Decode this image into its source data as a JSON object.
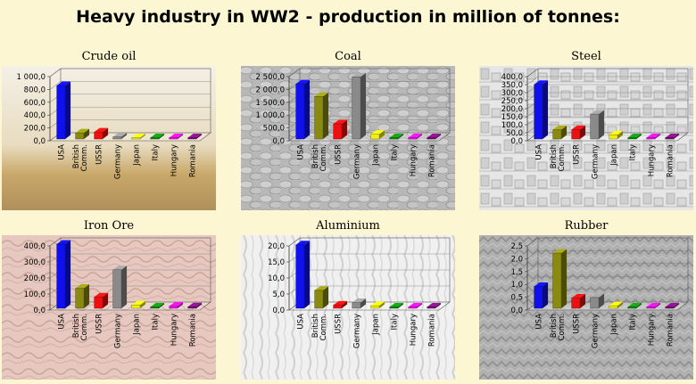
{
  "title": "Heavy industry in WW2 - production in million of tonnes:",
  "colors": {
    "USA": "#1010ee",
    "British Comm.": "#8a8a10",
    "USSR": "#ee1010",
    "Germany": "#8a8a8a",
    "Japan": "#eeee10",
    "Italy": "#108a10",
    "Hungary": "#ee10ee",
    "Romania": "#7a107a"
  },
  "chart_data": [
    {
      "type": "bar",
      "title": "Crude oil",
      "categories": [
        "USA",
        "British Comm.",
        "USSR",
        "Germany",
        "Japan",
        "Italy",
        "Hungary",
        "Romania"
      ],
      "values": [
        833,
        96,
        110,
        33,
        5,
        1,
        3,
        4
      ],
      "ylim": [
        0,
        1000
      ],
      "yticks": [
        "0,0",
        "200,0",
        "400,0",
        "600,0",
        "800,0",
        "1 000,0"
      ],
      "background": "oil"
    },
    {
      "type": "bar",
      "title": "Coal",
      "categories": [
        "USA",
        "British Comm.",
        "USSR",
        "Germany",
        "Japan",
        "Italy",
        "Hungary",
        "Romania"
      ],
      "values": [
        2149,
        1658,
        590,
        2420,
        185,
        16,
        45,
        11
      ],
      "ylim": [
        0,
        2500
      ],
      "yticks": [
        "0,0",
        "500,0",
        "1 000,0",
        "1 500,0",
        "2 000,0",
        "2 500,0"
      ],
      "background": "coal"
    },
    {
      "type": "bar",
      "title": "Steel",
      "categories": [
        "USA",
        "British Comm.",
        "USSR",
        "Germany",
        "Japan",
        "Italy",
        "Hungary",
        "Romania"
      ],
      "values": [
        340,
        58,
        59,
        155,
        26,
        5,
        2,
        2
      ],
      "ylim": [
        0,
        400
      ],
      "yticks": [
        "0,0",
        "50,0",
        "100,0",
        "150,0",
        "200,0",
        "250,0",
        "300,0",
        "350,0",
        "400,0"
      ],
      "background": "steel"
    },
    {
      "type": "bar",
      "title": "Iron Ore",
      "categories": [
        "USA",
        "British Comm.",
        "USSR",
        "Germany",
        "Japan",
        "Italy",
        "Hungary",
        "Romania"
      ],
      "values": [
        409,
        125,
        71,
        240,
        21,
        4,
        13,
        10
      ],
      "ylim": [
        0,
        400
      ],
      "yticks": [
        "0,0",
        "100,0",
        "200,0",
        "300,0",
        "400,0"
      ],
      "background": "iron"
    },
    {
      "type": "bar",
      "title": "Aluminium",
      "categories": [
        "USA",
        "British Comm.",
        "USSR",
        "Germany",
        "Japan",
        "Italy",
        "Hungary",
        "Romania"
      ],
      "values": [
        19.8,
        5.6,
        1,
        1.8,
        0.8,
        0.3,
        0.2,
        0.2
      ],
      "ylim": [
        0,
        20
      ],
      "yticks": [
        "0,0",
        "5,0",
        "10,0",
        "15,0",
        "20,0"
      ],
      "background": "alu"
    },
    {
      "type": "bar",
      "title": "Rubber",
      "categories": [
        "USA",
        "British Comm.",
        "USSR",
        "Germany",
        "Japan",
        "Italy",
        "Hungary",
        "Romania"
      ],
      "values": [
        0.85,
        2.15,
        0.4,
        0.42,
        0.1,
        0.02,
        0.02,
        0.02
      ],
      "ylim": [
        0,
        2.5
      ],
      "yticks": [
        "0,0",
        "0,5",
        "1,0",
        "1,5",
        "2,0",
        "2,5"
      ],
      "background": "rubber"
    }
  ]
}
